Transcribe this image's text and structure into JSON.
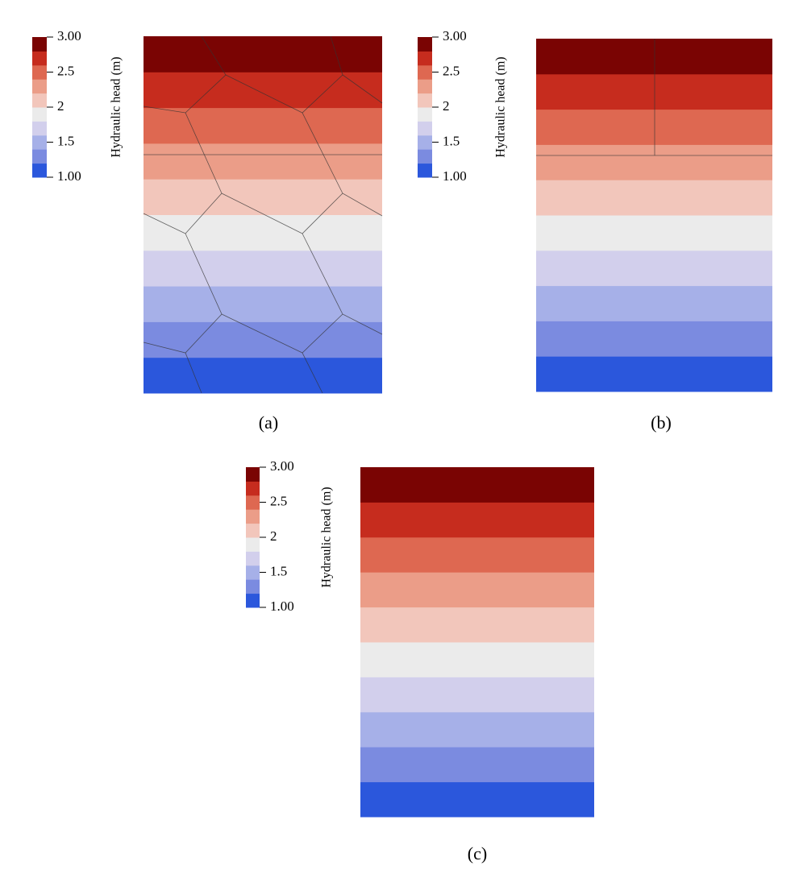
{
  "chart_data": [
    {
      "type": "contour",
      "caption": "(a)",
      "colorbar_label": "Hydraulic head (m)",
      "levels": [
        1,
        1.2,
        1.4,
        1.6,
        1.8,
        2,
        2.2,
        2.4,
        2.6,
        2.8,
        3
      ],
      "colors": [
        "#2b57dc",
        "#7b8be0",
        "#a6b0e8",
        "#d2cfec",
        "#ebebeb",
        "#f2c6bb",
        "#eb9d88",
        "#de6851",
        "#c62c1e",
        "#7a0403"
      ],
      "cticks": [
        {
          "value": 3,
          "label": "3.00"
        },
        2.5,
        2,
        1.5,
        {
          "value": 1,
          "label": "1.00"
        }
      ]
    },
    {
      "type": "contour",
      "caption": "(b)",
      "colorbar_label": "Hydraulic head (m)",
      "levels": [
        1,
        1.2,
        1.4,
        1.6,
        1.8,
        2,
        2.2,
        2.4,
        2.6,
        2.8,
        3
      ],
      "colors": [
        "#2b57dc",
        "#7b8be0",
        "#a6b0e8",
        "#d2cfec",
        "#ebebeb",
        "#f2c6bb",
        "#eb9d88",
        "#de6851",
        "#c62c1e",
        "#7a0403"
      ],
      "cticks": [
        {
          "value": 3,
          "label": "3.00"
        },
        2.5,
        2,
        1.5,
        {
          "value": 1,
          "label": "1.00"
        }
      ]
    },
    {
      "type": "contour",
      "caption": "(c)",
      "colorbar_label": "Hydraulic head (m)",
      "levels": [
        1,
        1.2,
        1.4,
        1.6,
        1.8,
        2,
        2.2,
        2.4,
        2.6,
        2.8,
        3
      ],
      "colors": [
        "#2b57dc",
        "#7b8be0",
        "#a6b0e8",
        "#d2cfec",
        "#ebebeb",
        "#f2c6bb",
        "#eb9d88",
        "#de6851",
        "#c62c1e",
        "#7a0403"
      ],
      "cticks": [
        {
          "value": 3,
          "label": "3.00"
        },
        2.5,
        2,
        1.5,
        {
          "value": 1,
          "label": "1.00"
        }
      ]
    }
  ]
}
